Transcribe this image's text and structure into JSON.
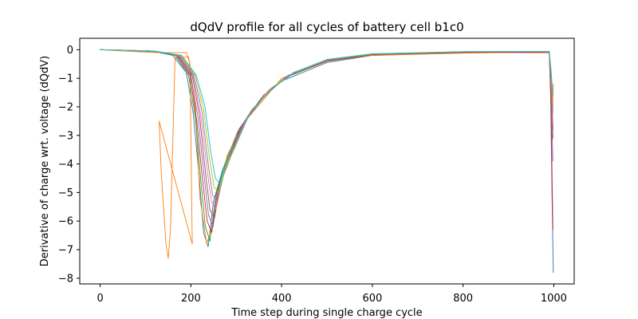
{
  "chart_data": {
    "type": "line",
    "title": "dQdV profile for all cycles of battery cell b1c0",
    "xlabel": "Time step during single charge cycle",
    "ylabel": "Derivative of charge wrt. voltage (dQdV)",
    "xlim": [
      -45,
      1045
    ],
    "ylim": [
      -8.2,
      0.4
    ],
    "xticks": [
      0,
      200,
      400,
      600,
      800,
      1000
    ],
    "yticks": [
      0,
      -1,
      -2,
      -3,
      -4,
      -5,
      -6,
      -7,
      -8
    ],
    "grid": false,
    "palette": [
      "#1f77b4",
      "#ff7f0e",
      "#2ca02c",
      "#d62728",
      "#9467bd",
      "#8c564b",
      "#e377c2",
      "#7f7f7f",
      "#bcbd22",
      "#17becf"
    ],
    "series": [
      {
        "x": [
          0,
          60,
          120,
          160,
          190,
          205,
          218,
          228,
          238,
          250,
          270,
          300,
          350,
          400,
          500,
          600,
          800,
          990,
          993,
          996,
          999
        ],
        "y": [
          0,
          -0.03,
          -0.07,
          -0.2,
          -0.8,
          -2.2,
          -4.4,
          -6.4,
          -6.9,
          -5.3,
          -4.2,
          -3.0,
          -1.8,
          -1.1,
          -0.45,
          -0.2,
          -0.1,
          -0.1,
          -1.5,
          -5.0,
          -7.8
        ]
      },
      {
        "x": [
          0,
          60,
          120,
          190,
          198,
          200,
          203,
          130,
          135,
          140,
          145,
          150,
          155,
          165,
          195,
          210,
          220,
          235,
          250,
          280,
          320,
          400,
          500,
          600,
          800,
          990,
          993,
          996,
          999
        ],
        "y": [
          0,
          -0.05,
          -0.1,
          -0.1,
          -0.5,
          -3.0,
          -6.8,
          -2.5,
          -4.4,
          -5.6,
          -6.8,
          -7.3,
          -6.3,
          -0.3,
          -0.25,
          -2.0,
          -5.2,
          -6.8,
          -6.0,
          -3.7,
          -2.5,
          -1.0,
          -0.4,
          -0.2,
          -0.12,
          -0.08,
          -0.8,
          -3.2,
          -1.2
        ]
      },
      {
        "x": [
          0,
          60,
          120,
          165,
          195,
          210,
          222,
          232,
          242,
          255,
          275,
          305,
          355,
          405,
          500,
          600,
          800,
          990,
          994,
          998
        ],
        "y": [
          0,
          -0.02,
          -0.06,
          -0.2,
          -0.9,
          -2.4,
          -4.6,
          -6.2,
          -6.7,
          -5.1,
          -4.0,
          -2.8,
          -1.7,
          -1.0,
          -0.4,
          -0.18,
          -0.08,
          -0.06,
          -1.1,
          -2.8
        ]
      },
      {
        "x": [
          0,
          60,
          120,
          168,
          198,
          213,
          226,
          236,
          246,
          258,
          280,
          310,
          360,
          410,
          500,
          600,
          800,
          990,
          994,
          998
        ],
        "y": [
          0,
          -0.02,
          -0.05,
          -0.2,
          -0.9,
          -2.5,
          -4.6,
          -6.0,
          -6.4,
          -5.0,
          -3.9,
          -2.7,
          -1.6,
          -0.95,
          -0.4,
          -0.17,
          -0.09,
          -0.1,
          -2.0,
          -6.3
        ]
      },
      {
        "x": [
          0,
          60,
          120,
          170,
          200,
          216,
          229,
          239,
          249,
          262,
          284,
          314,
          364,
          414,
          500,
          600,
          800,
          990,
          994,
          998
        ],
        "y": [
          0,
          -0.02,
          -0.05,
          -0.2,
          -0.9,
          -2.4,
          -4.4,
          -5.8,
          -6.2,
          -4.8,
          -3.8,
          -2.6,
          -1.6,
          -0.9,
          -0.38,
          -0.16,
          -0.08,
          -0.06,
          -1.4,
          -3.9
        ]
      },
      {
        "x": [
          0,
          60,
          120,
          172,
          203,
          219,
          232,
          242,
          252,
          265,
          287,
          318,
          368,
          418,
          500,
          600,
          800,
          990,
          994,
          998
        ],
        "y": [
          0,
          -0.02,
          -0.05,
          -0.2,
          -0.9,
          -2.3,
          -4.3,
          -5.6,
          -5.9,
          -4.7,
          -3.7,
          -2.5,
          -1.5,
          -0.9,
          -0.38,
          -0.16,
          -0.08,
          -0.06,
          -1.2,
          -3.1
        ]
      },
      {
        "x": [
          0,
          60,
          120,
          174,
          205,
          222,
          235,
          245,
          255,
          268,
          290,
          322,
          372,
          422,
          500,
          600,
          800,
          990,
          994,
          998
        ],
        "y": [
          0,
          -0.02,
          -0.05,
          -0.2,
          -0.9,
          -2.3,
          -4.1,
          -5.3,
          -5.6,
          -4.5,
          -3.6,
          -2.4,
          -1.4,
          -0.85,
          -0.36,
          -0.15,
          -0.07,
          -0.06,
          -1.0,
          -2.6
        ]
      },
      {
        "x": [
          0,
          60,
          120,
          176,
          207,
          225,
          238,
          248,
          258,
          272,
          294,
          326,
          376,
          426,
          500,
          600,
          800,
          990,
          994,
          998
        ],
        "y": [
          0,
          -0.02,
          -0.05,
          -0.2,
          -0.9,
          -2.2,
          -4.0,
          -5.1,
          -5.3,
          -4.4,
          -3.5,
          -2.3,
          -1.4,
          -0.8,
          -0.35,
          -0.15,
          -0.07,
          -0.06,
          -0.9,
          -2.2
        ]
      },
      {
        "x": [
          0,
          60,
          120,
          178,
          210,
          228,
          241,
          251,
          261,
          275,
          298,
          330,
          380,
          430,
          500,
          600,
          800,
          990,
          994,
          998
        ],
        "y": [
          0,
          -0.02,
          -0.05,
          -0.2,
          -0.9,
          -2.1,
          -3.8,
          -4.8,
          -5.0,
          -4.2,
          -3.4,
          -2.2,
          -1.3,
          -0.8,
          -0.35,
          -0.15,
          -0.07,
          -0.06,
          -0.8,
          -1.9
        ]
      },
      {
        "x": [
          0,
          60,
          120,
          180,
          212,
          231,
          244,
          254,
          264,
          278,
          302,
          334,
          384,
          434,
          500,
          600,
          800,
          990,
          994,
          998
        ],
        "y": [
          0,
          -0.02,
          -0.05,
          -0.2,
          -0.9,
          -2.0,
          -3.6,
          -4.5,
          -4.7,
          -4.0,
          -3.2,
          -2.1,
          -1.3,
          -0.75,
          -0.34,
          -0.14,
          -0.07,
          -0.06,
          -0.7,
          -1.6
        ]
      }
    ]
  }
}
